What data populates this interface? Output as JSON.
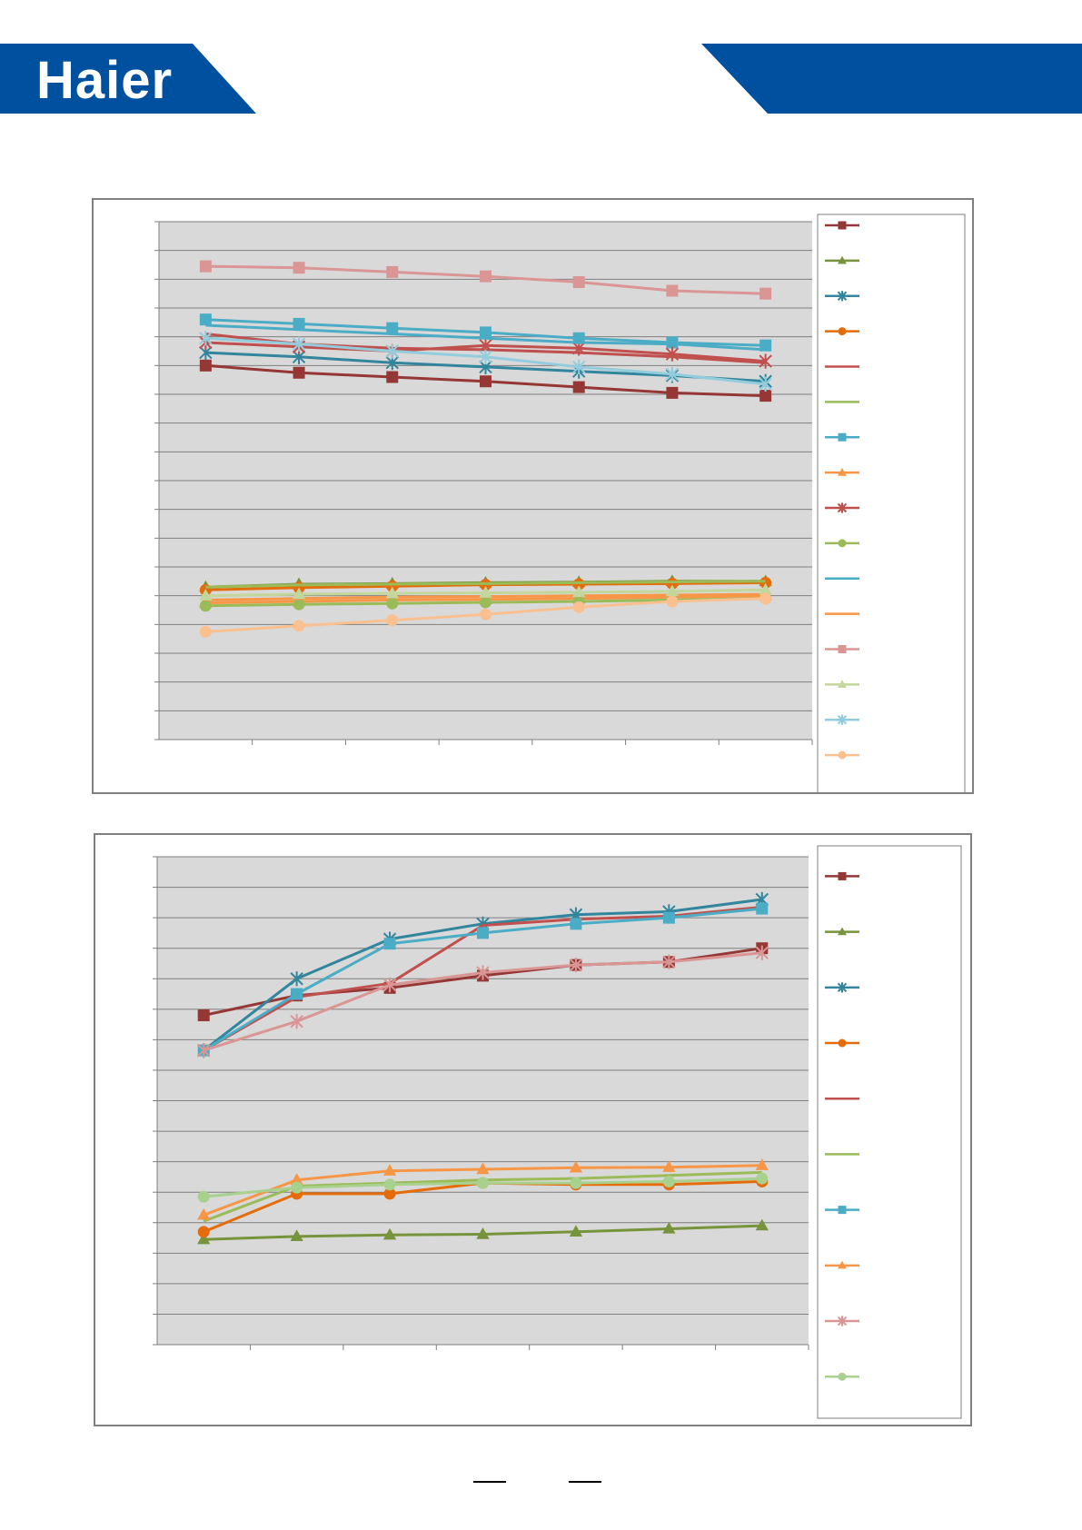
{
  "brand": {
    "logo_text": "Haier",
    "color": "#0050a0"
  },
  "colors": {
    "plot_bg": "#d9d9d9",
    "gridline": "#7f7f7f"
  },
  "chart_data": [
    {
      "type": "line",
      "grid": true,
      "legend_position": "right",
      "categories": [
        "",
        "",
        "",
        "",
        "",
        "",
        ""
      ],
      "ylim": [
        0,
        18
      ],
      "series": [
        {
          "color": "#953735",
          "marker": "square",
          "values": [
            13.0,
            12.75,
            12.6,
            12.45,
            12.25,
            12.05,
            11.95
          ]
        },
        {
          "color": "#77933c",
          "marker": "triangle",
          "values": [
            5.3,
            5.4,
            5.42,
            5.45,
            5.47,
            5.5,
            5.5
          ]
        },
        {
          "color": "#31859c",
          "marker": "star",
          "values": [
            13.45,
            13.3,
            13.1,
            12.95,
            12.8,
            12.65,
            12.45
          ]
        },
        {
          "color": "#e46c0a",
          "marker": "circle",
          "values": [
            5.2,
            5.28,
            5.33,
            5.38,
            5.4,
            5.42,
            5.45
          ]
        },
        {
          "color": "#c0504d",
          "marker": "none",
          "values": [
            14.1,
            13.75,
            13.6,
            13.55,
            13.45,
            13.3,
            13.1
          ]
        },
        {
          "color": "#9bbb59",
          "marker": "none",
          "values": [
            5.3,
            5.37,
            5.4,
            5.42,
            5.45,
            5.48,
            5.5
          ]
        },
        {
          "color": "#4bacc6",
          "marker": "square",
          "values": [
            14.6,
            14.45,
            14.3,
            14.15,
            13.95,
            13.8,
            13.7
          ]
        },
        {
          "color": "#f79646",
          "marker": "triangle",
          "values": [
            4.75,
            4.8,
            4.85,
            4.87,
            4.9,
            4.95,
            5.0
          ]
        },
        {
          "color": "#c0504d",
          "marker": "star",
          "values": [
            13.8,
            13.65,
            13.5,
            13.7,
            13.6,
            13.4,
            13.15
          ]
        },
        {
          "color": "#9bbb59",
          "marker": "circle",
          "values": [
            4.65,
            4.7,
            4.73,
            4.77,
            4.8,
            4.85,
            4.9
          ]
        },
        {
          "color": "#4bacc6",
          "marker": "none",
          "values": [
            14.4,
            14.25,
            14.1,
            13.95,
            13.8,
            13.75,
            13.55
          ]
        },
        {
          "color": "#f79646",
          "marker": "none",
          "values": [
            4.85,
            4.9,
            4.95,
            4.97,
            5.0,
            5.02,
            5.05
          ]
        },
        {
          "color": "#d99694",
          "marker": "square",
          "values": [
            16.45,
            16.4,
            16.25,
            16.1,
            15.9,
            15.6,
            15.5
          ]
        },
        {
          "color": "#c3d69b",
          "marker": "triangle",
          "values": [
            5.0,
            5.05,
            5.08,
            5.1,
            5.12,
            5.15,
            5.2
          ]
        },
        {
          "color": "#93cddd",
          "marker": "star",
          "values": [
            13.95,
            13.75,
            13.5,
            13.3,
            12.95,
            12.7,
            12.35
          ]
        },
        {
          "color": "#fac090",
          "marker": "circle",
          "values": [
            3.75,
            3.95,
            4.15,
            4.35,
            4.6,
            4.8,
            4.9
          ]
        }
      ]
    },
    {
      "type": "line",
      "grid": true,
      "legend_position": "right",
      "categories": [
        "",
        "",
        "",
        "",
        "",
        "",
        ""
      ],
      "ylim": [
        0,
        16
      ],
      "series": [
        {
          "color": "#953735",
          "marker": "square",
          "values": [
            10.8,
            11.45,
            11.7,
            12.1,
            12.45,
            12.55,
            13.0
          ]
        },
        {
          "color": "#77933c",
          "marker": "triangle",
          "values": [
            3.45,
            3.55,
            3.6,
            3.62,
            3.7,
            3.8,
            3.9
          ]
        },
        {
          "color": "#31859c",
          "marker": "star",
          "values": [
            9.65,
            12.0,
            13.3,
            13.8,
            14.1,
            14.2,
            14.6
          ]
        },
        {
          "color": "#e46c0a",
          "marker": "circle",
          "values": [
            3.7,
            4.95,
            4.95,
            5.3,
            5.25,
            5.25,
            5.35
          ]
        },
        {
          "color": "#c0504d",
          "marker": "none",
          "values": [
            9.65,
            11.4,
            11.85,
            13.75,
            13.95,
            14.05,
            14.35
          ]
        },
        {
          "color": "#9bbb59",
          "marker": "none",
          "values": [
            4.05,
            5.2,
            5.3,
            5.4,
            5.45,
            5.55,
            5.65
          ]
        },
        {
          "color": "#4bacc6",
          "marker": "square",
          "values": [
            9.65,
            11.5,
            13.15,
            13.5,
            13.8,
            14.0,
            14.3
          ]
        },
        {
          "color": "#f79646",
          "marker": "triangle",
          "values": [
            4.25,
            5.4,
            5.7,
            5.75,
            5.8,
            5.82,
            5.88
          ]
        },
        {
          "color": "#d99694",
          "marker": "star",
          "values": [
            9.65,
            10.6,
            11.8,
            12.2,
            12.45,
            12.55,
            12.85
          ]
        },
        {
          "color": "#a9d18e",
          "marker": "circle",
          "values": [
            4.85,
            5.15,
            5.25,
            5.3,
            5.3,
            5.35,
            5.45
          ]
        }
      ]
    }
  ]
}
